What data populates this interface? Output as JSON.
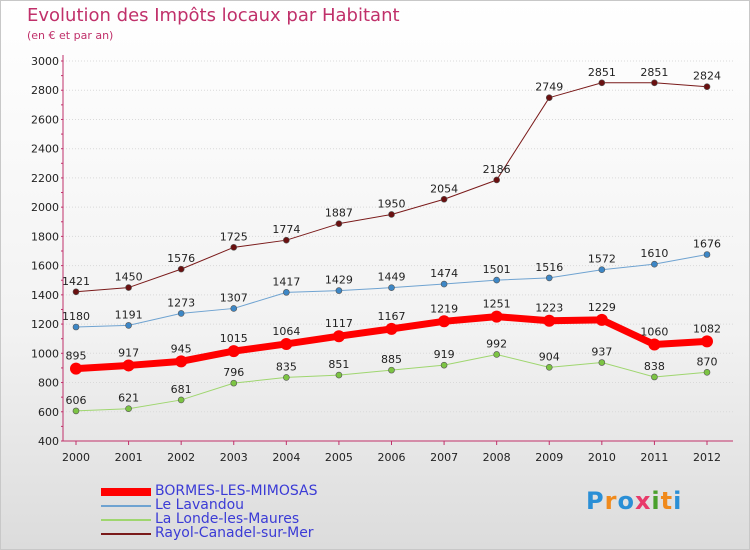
{
  "title": "Evolution des Impôts locaux par Habitant",
  "subtitle": "(en € et par an)",
  "logo": {
    "text": "Proxiti",
    "letters": [
      "P",
      "r",
      "o",
      "x",
      "i",
      "t",
      "i"
    ],
    "colors": [
      "#2a8fd6",
      "#f08a1c",
      "#2a8fd6",
      "#e83a6a",
      "#4aa02c",
      "#f08a1c",
      "#2a8fd6"
    ]
  },
  "chart_data": {
    "type": "line",
    "title": "Evolution des Impôts locaux par Habitant",
    "subtitle": "(en € et par an)",
    "x": [
      "2000",
      "2001",
      "2002",
      "2003",
      "2004",
      "2005",
      "2006",
      "2007",
      "2008",
      "2009",
      "2010",
      "2011",
      "2012"
    ],
    "ylim": [
      400,
      3000
    ],
    "yticks": [
      "3000",
      "2800",
      "2600",
      "2400",
      "2200",
      "2000",
      "1800",
      "1600",
      "1400",
      "1200",
      "1000",
      "800",
      "600",
      "400"
    ],
    "grid": "horizontal",
    "legend_position": "bottom-left",
    "series": [
      {
        "name": "Rayol-Canadel-sur-Mer",
        "color": "#7a1a1a",
        "marker": "#6a1010",
        "width": 1,
        "values": [
          1421,
          1450,
          1576,
          1725,
          1774,
          1887,
          1950,
          2054,
          2186,
          2749,
          2851,
          2851,
          2824
        ],
        "labels": [
          "1421",
          "1450",
          "1576",
          "1725",
          "1774",
          "1887",
          "1950",
          "2054",
          "2186",
          "2749",
          "2851",
          "2851",
          "2824"
        ]
      },
      {
        "name": "Le Lavandou",
        "color": "#6fa3d1",
        "marker": "#3d87c6",
        "width": 1,
        "values": [
          1180,
          1191,
          1273,
          1307,
          1417,
          1429,
          1449,
          1474,
          1501,
          1516,
          1572,
          1610,
          1676
        ],
        "labels": [
          "1180",
          "1191",
          "1273",
          "1307",
          "1417",
          "1429",
          "1449",
          "1474",
          "1501",
          "1516",
          "1572",
          "1610",
          "1676"
        ]
      },
      {
        "name": "La Londe-les-Maures",
        "color": "#9fd66f",
        "marker": "#7cc443",
        "width": 1,
        "values": [
          606,
          621,
          681,
          796,
          835,
          851,
          885,
          919,
          992,
          904,
          937,
          838,
          870
        ],
        "labels": [
          "606",
          "621",
          "681",
          "796",
          "835",
          "851",
          "885",
          "919",
          "992",
          "904",
          "937",
          "838",
          "870"
        ]
      },
      {
        "name": "BORMES-LES-MIMOSAS",
        "color": "#ff0000",
        "marker": "#ff0000",
        "width": 7,
        "values": [
          895,
          917,
          945,
          1015,
          1064,
          1117,
          1167,
          1219,
          1251,
          1223,
          1229,
          1060,
          1082
        ],
        "labels": [
          "895",
          "917",
          "945",
          "1015",
          "1064",
          "1117",
          "1167",
          "1219",
          "1251",
          "1223",
          "1229",
          "1060",
          "1082"
        ]
      }
    ],
    "legend": [
      "BORMES-LES-MIMOSAS",
      "Le Lavandou",
      "La Londe-les-Maures",
      "Rayol-Canadel-sur-Mer"
    ]
  }
}
